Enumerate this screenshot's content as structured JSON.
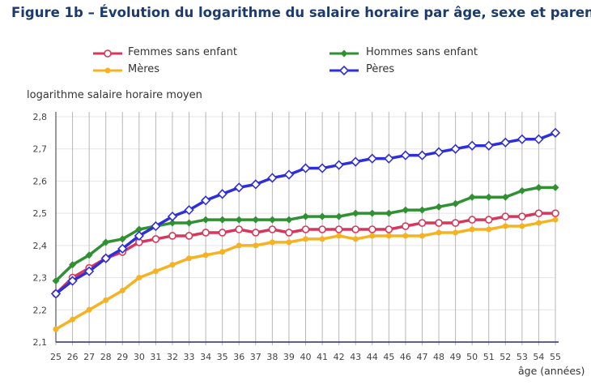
{
  "title": "Figure 1b – Évolution du logarithme du salaire horaire par âge, sexe et parentalité",
  "chart_data": {
    "type": "line",
    "title": "Figure 1b – Évolution du logarithme du salaire horaire par âge, sexe et parentalité",
    "xlabel": "âge (années)",
    "ylabel": "logarithme salaire horaire moyen",
    "x": [
      25,
      26,
      27,
      28,
      29,
      30,
      31,
      32,
      33,
      34,
      35,
      36,
      37,
      38,
      39,
      40,
      41,
      42,
      43,
      44,
      45,
      46,
      47,
      48,
      49,
      50,
      51,
      52,
      53,
      54,
      55
    ],
    "ylim": [
      2.1,
      2.8
    ],
    "yticks": [
      "2,1",
      "2,2",
      "2,3",
      "2,4",
      "2,5",
      "2,6",
      "2,7",
      "2,8"
    ],
    "grid": true,
    "legend_position": "top",
    "series": [
      {
        "name": "Femmes sans enfant",
        "color": "#d6375a",
        "marker": "circle-open",
        "values": [
          2.25,
          2.3,
          2.33,
          2.36,
          2.38,
          2.41,
          2.42,
          2.43,
          2.43,
          2.44,
          2.44,
          2.45,
          2.44,
          2.45,
          2.44,
          2.45,
          2.45,
          2.45,
          2.45,
          2.45,
          2.45,
          2.46,
          2.47,
          2.47,
          2.47,
          2.48,
          2.48,
          2.49,
          2.49,
          2.5,
          2.5
        ]
      },
      {
        "name": "Hommes sans enfant",
        "color": "#2f9131",
        "marker": "diamond-filled",
        "values": [
          2.29,
          2.34,
          2.37,
          2.41,
          2.42,
          2.45,
          2.46,
          2.47,
          2.47,
          2.48,
          2.48,
          2.48,
          2.48,
          2.48,
          2.48,
          2.49,
          2.49,
          2.49,
          2.5,
          2.5,
          2.5,
          2.51,
          2.51,
          2.52,
          2.53,
          2.55,
          2.55,
          2.55,
          2.57,
          2.58,
          2.58
        ]
      },
      {
        "name": "Mères",
        "color": "#f5b324",
        "marker": "circle-filled",
        "values": [
          2.14,
          2.17,
          2.2,
          2.23,
          2.26,
          2.3,
          2.32,
          2.34,
          2.36,
          2.37,
          2.38,
          2.4,
          2.4,
          2.41,
          2.41,
          2.42,
          2.42,
          2.43,
          2.42,
          2.43,
          2.43,
          2.43,
          2.43,
          2.44,
          2.44,
          2.45,
          2.45,
          2.46,
          2.46,
          2.47,
          2.48
        ]
      },
      {
        "name": "Pères",
        "color": "#2f2fd9",
        "marker": "diamond-open",
        "values": [
          2.25,
          2.29,
          2.32,
          2.36,
          2.39,
          2.43,
          2.46,
          2.49,
          2.51,
          2.54,
          2.56,
          2.58,
          2.59,
          2.61,
          2.62,
          2.64,
          2.64,
          2.65,
          2.66,
          2.67,
          2.67,
          2.68,
          2.68,
          2.69,
          2.7,
          2.71,
          2.71,
          2.72,
          2.73,
          2.73,
          2.75
        ]
      }
    ]
  }
}
